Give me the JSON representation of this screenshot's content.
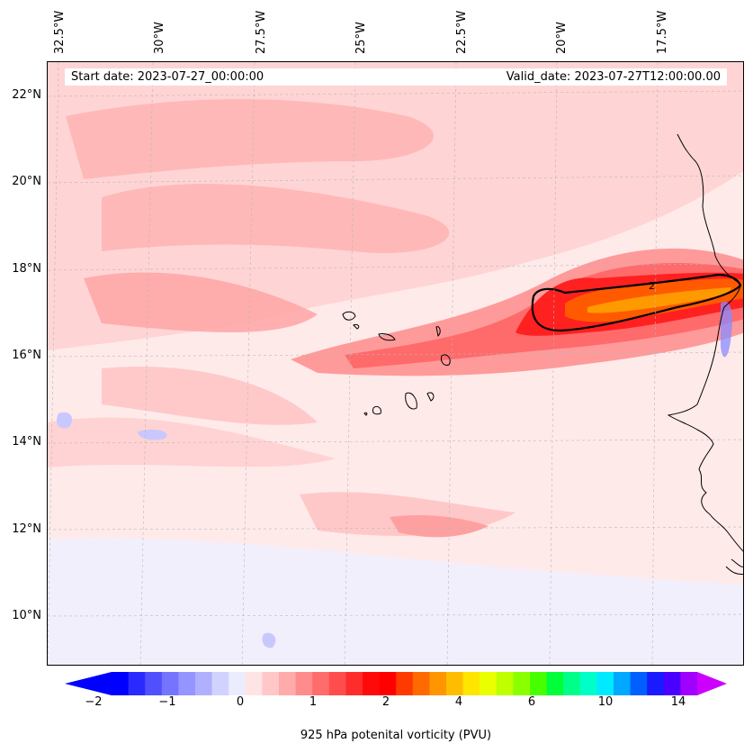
{
  "header": {
    "start_date": "Start date: 2023-07-27_00:00:00",
    "valid_date": "Valid_date: 2023-07-27T12:00:00.00"
  },
  "map": {
    "lon_labels": [
      "32.5°W",
      "30°W",
      "27.5°W",
      "25°W",
      "22.5°W",
      "20°W",
      "17.5°W"
    ],
    "lat_labels": [
      "22°N",
      "20°N",
      "18°N",
      "16°N",
      "14°N",
      "12°N",
      "10°N"
    ],
    "contour_label": "2",
    "colors": {
      "background": "#ffeaea",
      "light": "#ffcccc",
      "medium": "#ff9a9a",
      "strong": "#ff5050",
      "red": "#ff1a1a",
      "orange": "#ff7a00",
      "blue_light": "#e8e8ff",
      "blue": "#8a8aff",
      "coast": "#000000"
    }
  },
  "colorbar": {
    "title": "925 hPa potenital vorticity (PVU)",
    "ticks": [
      "−2",
      "−1",
      "0",
      "1",
      "2",
      "4",
      "6",
      "10",
      "14"
    ],
    "levels": [
      "#0000ff",
      "#2a2aff",
      "#5050ff",
      "#7474ff",
      "#9595ff",
      "#b0b0ff",
      "#d2d2ff",
      "#ececff",
      "#ffe4e4",
      "#ffc8c8",
      "#ffabab",
      "#ff8c8c",
      "#ff6c6c",
      "#ff4d4d",
      "#ff2c2c",
      "#ff0a0a",
      "#ff0000",
      "#ff3a00",
      "#ff6a00",
      "#ff9500",
      "#ffbd00",
      "#ffe500",
      "#eaff00",
      "#bfff00",
      "#8aff00",
      "#48ff00",
      "#00ff3a",
      "#00ff88",
      "#00ffc8",
      "#00eaff",
      "#00a8ff",
      "#0060ff",
      "#1a1aff",
      "#4a00ff",
      "#a000ff"
    ],
    "extend_min_color": "#0000ff",
    "extend_max_color": "#cc00ff"
  }
}
